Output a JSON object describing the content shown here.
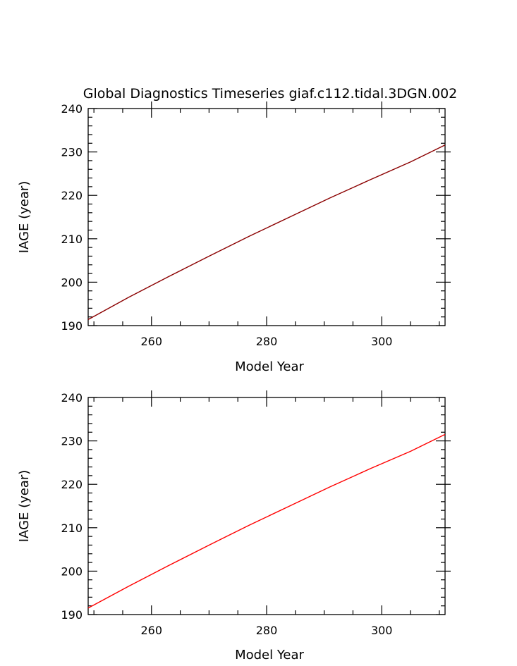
{
  "title": "Global Diagnostics Timeseries giaf.c112.tidal.3DGN.002",
  "colors": {
    "background": "#ffffff",
    "axes": "#000000"
  },
  "chart_data": [
    {
      "type": "line",
      "xlabel": "Model Year",
      "ylabel": "IAGE (year)",
      "xlim": [
        249,
        311
      ],
      "ylim": [
        190,
        240
      ],
      "xticks": [
        260,
        280,
        300
      ],
      "yticks": [
        190,
        200,
        210,
        220,
        230,
        240
      ],
      "x_minor_step": 5,
      "y_minor_step": 2,
      "grid": false,
      "series": [
        {
          "color": "#8b0000",
          "x": [
            249,
            256,
            263,
            270,
            277,
            284,
            291,
            298,
            305,
            311
          ],
          "y": [
            191.4,
            196.5,
            201.3,
            206.0,
            210.6,
            215.0,
            219.4,
            223.6,
            227.7,
            231.6
          ]
        }
      ]
    },
    {
      "type": "line",
      "xlabel": "Model Year",
      "ylabel": "IAGE (year)",
      "xlim": [
        249,
        311
      ],
      "ylim": [
        190,
        240
      ],
      "xticks": [
        260,
        280,
        300
      ],
      "yticks": [
        190,
        200,
        210,
        220,
        230,
        240
      ],
      "x_minor_step": 5,
      "y_minor_step": 2,
      "grid": false,
      "series": [
        {
          "color": "#ff0000",
          "x": [
            249,
            256,
            263,
            270,
            277,
            284,
            291,
            298,
            305,
            311
          ],
          "y": [
            191.5,
            196.5,
            201.3,
            206.0,
            210.6,
            215.0,
            219.4,
            223.6,
            227.6,
            231.5
          ]
        }
      ]
    }
  ]
}
